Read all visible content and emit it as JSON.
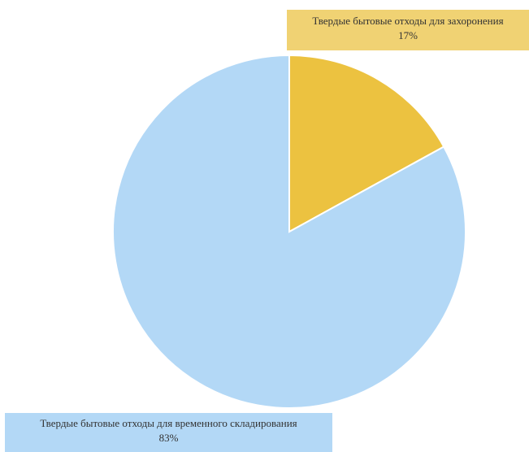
{
  "chart_data": {
    "type": "pie",
    "title": "",
    "start_angle": "top, clockwise",
    "slices": [
      {
        "label": "Твердые бытовые отходы для захоронения",
        "value": 17,
        "value_label": "17%",
        "color": "#ecc240",
        "label_bg": "#f0d273"
      },
      {
        "label": "Твердые бытовые отходы для временного складирования",
        "value": 83,
        "value_label": "83%",
        "color": "#b3d8f6",
        "label_bg": "#b3d8f6"
      }
    ]
  }
}
